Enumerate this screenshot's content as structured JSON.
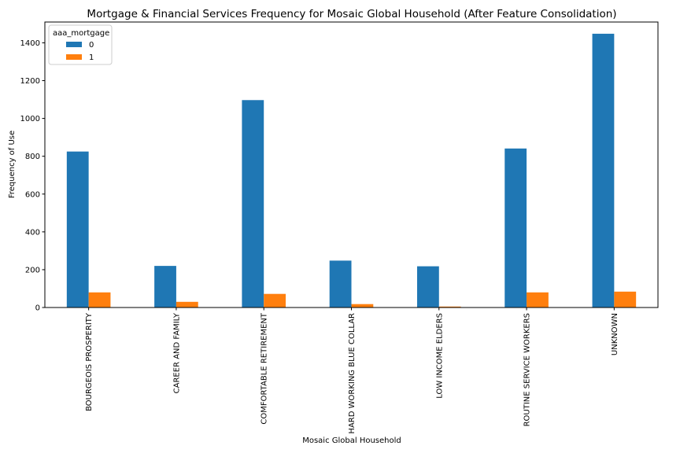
{
  "chart_data": {
    "type": "bar",
    "title": "Mortgage & Financial Services Frequency for Mosaic Global Household (After Feature Consolidation)",
    "xlabel": "Mosaic Global Household",
    "ylabel": "Frequency of Use",
    "ylim": [
      0,
      1510
    ],
    "yticks": [
      0,
      200,
      400,
      600,
      800,
      1000,
      1200,
      1400
    ],
    "grid": false,
    "legend": {
      "title": "aaa_mortgage",
      "placement": "top-left"
    },
    "categories": [
      "BOURGEOIS PROSPERITY",
      "CAREER AND FAMILY",
      "COMFORTABLE RETIREMENT",
      "HARD WORKING BLUE COLLAR",
      "LOW INCOME ELDERS",
      "ROUTINE SERVICE WORKERS",
      "UNKNOWN"
    ],
    "series": [
      {
        "name": "0",
        "color": "#1f77b4",
        "values": [
          825,
          220,
          1097,
          248,
          218,
          841,
          1448
        ]
      },
      {
        "name": "1",
        "color": "#ff7f0e",
        "values": [
          80,
          30,
          72,
          18,
          5,
          80,
          84
        ]
      }
    ]
  }
}
